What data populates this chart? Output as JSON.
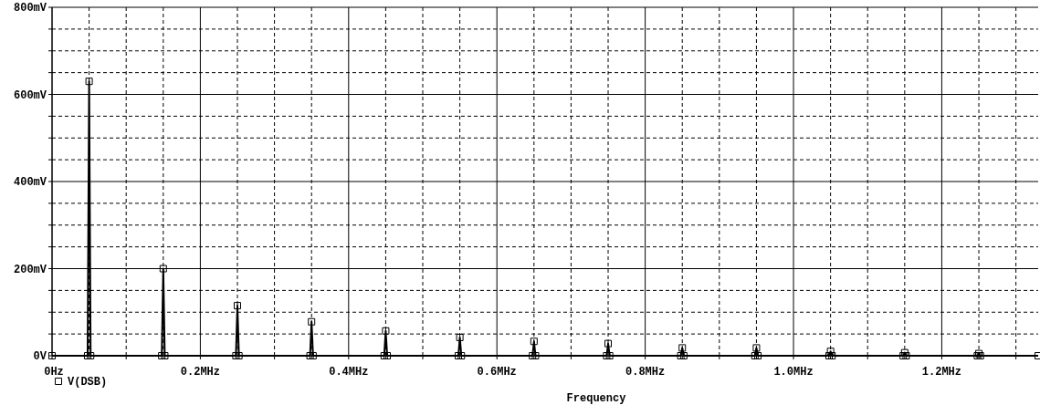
{
  "chart_data": {
    "type": "line",
    "xlabel": "Frequency",
    "legend": "bottom left",
    "marker": "square",
    "line_style": "solid",
    "grid": true,
    "xlim": [
      0,
      1.33
    ],
    "ylim": [
      0,
      800
    ],
    "xticks": [
      {
        "value": 0,
        "label": "0Hz"
      },
      {
        "value": 0.05,
        "label": null
      },
      {
        "value": 0.1,
        "label": null
      },
      {
        "value": 0.15,
        "label": null
      },
      {
        "value": 0.2,
        "label": "0.2MHz"
      },
      {
        "value": 0.25,
        "label": null
      },
      {
        "value": 0.3,
        "label": null
      },
      {
        "value": 0.35,
        "label": null
      },
      {
        "value": 0.4,
        "label": "0.4MHz"
      },
      {
        "value": 0.45,
        "label": null
      },
      {
        "value": 0.5,
        "label": null
      },
      {
        "value": 0.55,
        "label": null
      },
      {
        "value": 0.6,
        "label": "0.6MHz"
      },
      {
        "value": 0.65,
        "label": null
      },
      {
        "value": 0.7,
        "label": null
      },
      {
        "value": 0.75,
        "label": null
      },
      {
        "value": 0.8,
        "label": "0.8MHz"
      },
      {
        "value": 0.85,
        "label": null
      },
      {
        "value": 0.9,
        "label": null
      },
      {
        "value": 0.95,
        "label": null
      },
      {
        "value": 1.0,
        "label": "1.0MHz"
      },
      {
        "value": 1.05,
        "label": null
      },
      {
        "value": 1.1,
        "label": null
      },
      {
        "value": 1.15,
        "label": null
      },
      {
        "value": 1.2,
        "label": "1.2MHz"
      },
      {
        "value": 1.25,
        "label": null
      },
      {
        "value": 1.3,
        "label": null
      }
    ],
    "yticks": [
      {
        "value": 0,
        "label": "0V"
      },
      {
        "value": 50,
        "label": null
      },
      {
        "value": 100,
        "label": null
      },
      {
        "value": 150,
        "label": null
      },
      {
        "value": 200,
        "label": "200mV"
      },
      {
        "value": 250,
        "label": null
      },
      {
        "value": 300,
        "label": null
      },
      {
        "value": 350,
        "label": null
      },
      {
        "value": 400,
        "label": "400mV"
      },
      {
        "value": 450,
        "label": null
      },
      {
        "value": 500,
        "label": null
      },
      {
        "value": 550,
        "label": null
      },
      {
        "value": 600,
        "label": "600mV"
      },
      {
        "value": 650,
        "label": null
      },
      {
        "value": 700,
        "label": null
      },
      {
        "value": 750,
        "label": null
      },
      {
        "value": 800,
        "label": "800mV"
      }
    ],
    "series": [
      {
        "name": "V(DSB)",
        "color": "#000000",
        "x": [
          0,
          0.048,
          0.05,
          0.052,
          0.148,
          0.15,
          0.152,
          0.248,
          0.25,
          0.252,
          0.348,
          0.35,
          0.352,
          0.448,
          0.45,
          0.452,
          0.548,
          0.55,
          0.552,
          0.648,
          0.65,
          0.652,
          0.748,
          0.75,
          0.752,
          0.848,
          0.85,
          0.852,
          0.948,
          0.95,
          0.952,
          1.048,
          1.05,
          1.052,
          1.148,
          1.15,
          1.152,
          1.248,
          1.25,
          1.252,
          1.33
        ],
        "values": [
          0,
          0,
          630,
          0,
          0,
          200,
          0,
          0,
          115,
          0,
          0,
          78,
          0,
          0,
          57,
          0,
          0,
          42,
          0,
          0,
          33,
          0,
          0,
          28,
          0,
          0,
          18,
          0,
          0,
          18,
          0,
          0,
          10,
          0,
          0,
          7,
          0,
          0,
          5,
          0,
          0
        ]
      }
    ]
  }
}
